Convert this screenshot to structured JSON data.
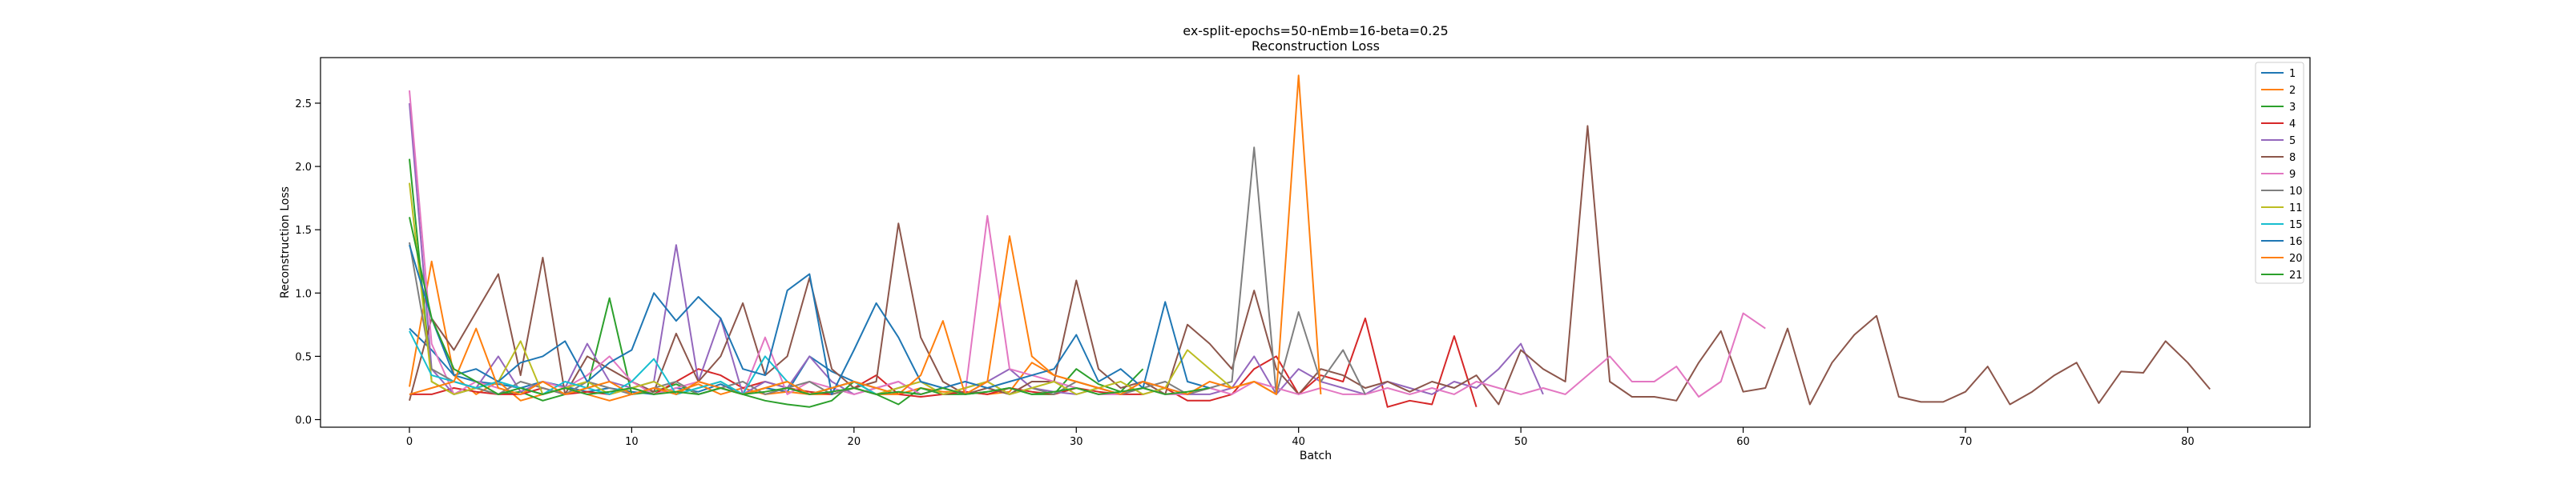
{
  "chart_data": {
    "type": "line",
    "title": "ex-split-epochs=50-nEmb=16-beta=0.25",
    "subtitle": "Reconstruction Loss",
    "xlabel": "Batch",
    "ylabel": "Reconstruction Loss",
    "xlim": [
      -4,
      85.5
    ],
    "ylim": [
      -0.06,
      2.86
    ],
    "xticks": [
      0,
      10,
      20,
      30,
      40,
      50,
      60,
      70,
      80
    ],
    "yticks": [
      0.0,
      0.5,
      1.0,
      1.5,
      2.0,
      2.5
    ],
    "xtick_labels": [
      "0",
      "10",
      "20",
      "30",
      "40",
      "50",
      "60",
      "70",
      "80"
    ],
    "ytick_labels": [
      "0.0",
      "0.5",
      "1.0",
      "1.5",
      "2.0",
      "2.5"
    ],
    "grid": false,
    "legend_position": "top-right",
    "series": [
      {
        "name": "1",
        "color": "#1f77b4",
        "values": [
          0.72,
          0.55,
          0.35,
          0.3,
          0.28,
          0.25,
          0.3,
          0.26,
          0.22,
          0.25,
          0.22,
          0.2,
          0.25,
          0.22,
          0.28,
          0.2,
          0.25,
          0.22,
          0.5,
          0.38,
          0.3,
          0.25
        ]
      },
      {
        "name": "2",
        "color": "#ff7f0e",
        "values": [
          0.26,
          1.25,
          0.35,
          0.2,
          0.3,
          0.15,
          0.2,
          0.25,
          0.2,
          0.15,
          0.2,
          0.25,
          0.22,
          0.28,
          0.2,
          0.25,
          0.2,
          0.22,
          0.2,
          0.2,
          0.25,
          0.2,
          0.2,
          0.25,
          0.22,
          0.22,
          0.2,
          0.22,
          0.45,
          0.35,
          0.3,
          0.25
        ]
      },
      {
        "name": "3",
        "color": "#2ca02c",
        "values": [
          2.06,
          0.3,
          0.2,
          0.25,
          0.2,
          0.22,
          0.15,
          0.2,
          0.25,
          0.96,
          0.2,
          0.22,
          0.28,
          0.2,
          0.25,
          0.2,
          0.15,
          0.12,
          0.1,
          0.15,
          0.3,
          0.2,
          0.12,
          0.25,
          0.2,
          0.2,
          0.22,
          0.25,
          0.2,
          0.2,
          0.4,
          0.28,
          0.22,
          0.4
        ]
      },
      {
        "name": "4",
        "color": "#d62728",
        "values": [
          0.2,
          0.2,
          0.25,
          0.22,
          0.2,
          0.2,
          0.25,
          0.2,
          0.22,
          0.2,
          0.25,
          0.2,
          0.3,
          0.4,
          0.35,
          0.25,
          0.3,
          0.25,
          0.22,
          0.2,
          0.25,
          0.35,
          0.2,
          0.18,
          0.2,
          0.22,
          0.2,
          0.25,
          0.22,
          0.2,
          0.25,
          0.22,
          0.2,
          0.2,
          0.25,
          0.15,
          0.15,
          0.2,
          0.4,
          0.5,
          0.2,
          0.35,
          0.3,
          0.8,
          0.1,
          0.15,
          0.12,
          0.66,
          0.1
        ]
      },
      {
        "name": "5",
        "color": "#9467bd",
        "values": [
          2.5,
          0.4,
          0.2,
          0.25,
          0.5,
          0.22,
          0.3,
          0.25,
          0.6,
          0.3,
          0.25,
          0.3,
          1.38,
          0.3,
          0.8,
          0.2,
          0.3,
          0.25,
          0.5,
          0.3,
          0.2,
          0.25,
          0.3,
          0.2,
          0.25,
          0.2,
          0.3,
          0.4,
          0.25,
          0.22,
          0.2,
          0.25,
          0.2,
          0.3,
          0.25,
          0.2,
          0.2,
          0.25,
          0.5,
          0.2,
          0.4,
          0.3,
          0.25,
          0.2,
          0.3,
          0.25,
          0.2,
          0.3,
          0.25,
          0.4,
          0.6,
          0.2
        ]
      },
      {
        "name": "8",
        "color": "#8c564b",
        "values": [
          0.15,
          0.8,
          0.55,
          0.85,
          1.15,
          0.35,
          1.28,
          0.2,
          0.5,
          0.4,
          0.3,
          0.22,
          0.68,
          0.3,
          0.5,
          0.92,
          0.35,
          0.5,
          1.12,
          0.4,
          0.25,
          0.3,
          1.55,
          0.65,
          0.3,
          0.2,
          0.25,
          0.2,
          0.3,
          0.3,
          1.1,
          0.4,
          0.25,
          0.3,
          0.2,
          0.75,
          0.6,
          0.4,
          1.02,
          0.4,
          0.2,
          0.4,
          0.35,
          0.25,
          0.3,
          0.22,
          0.3,
          0.25,
          0.35,
          0.12,
          0.55,
          0.4,
          0.3,
          2.32,
          0.3,
          0.18,
          0.18,
          0.15,
          0.45,
          0.7,
          0.22,
          0.25,
          0.72,
          0.12,
          0.45,
          0.67,
          0.82,
          0.18,
          0.14,
          0.14,
          0.22,
          0.42,
          0.12,
          0.22,
          0.35,
          0.45,
          0.13,
          0.38,
          0.37,
          0.62,
          0.45,
          0.24
        ]
      },
      {
        "name": "9",
        "color": "#e377c2",
        "values": [
          2.6,
          0.6,
          0.2,
          0.3,
          0.25,
          0.2,
          0.3,
          0.25,
          0.35,
          0.5,
          0.3,
          0.2,
          0.25,
          0.3,
          0.25,
          0.2,
          0.65,
          0.2,
          0.3,
          0.25,
          0.2,
          0.25,
          0.3,
          0.2,
          0.25,
          0.2,
          1.61,
          0.4,
          0.35,
          0.3,
          0.25,
          0.2,
          0.2,
          0.25,
          0.2,
          0.2,
          0.25,
          0.2,
          0.3,
          0.25,
          0.2,
          0.25,
          0.2,
          0.2,
          0.25,
          0.2,
          0.25,
          0.2,
          0.3,
          0.25,
          0.2,
          0.25,
          0.2,
          0.35,
          0.5,
          0.3,
          0.3,
          0.42,
          0.18,
          0.3,
          0.84,
          0.72
        ]
      },
      {
        "name": "10",
        "color": "#7f7f7f",
        "values": [
          1.4,
          0.4,
          0.3,
          0.25,
          0.2,
          0.3,
          0.25,
          0.2,
          0.3,
          0.25,
          0.2,
          0.25,
          0.3,
          0.2,
          0.25,
          0.3,
          0.2,
          0.25,
          0.3,
          0.2,
          0.25,
          0.2,
          0.25,
          0.3,
          0.2,
          0.25,
          0.3,
          0.2,
          0.25,
          0.2,
          0.3,
          0.25,
          0.2,
          0.25,
          0.3,
          0.2,
          0.25,
          0.3,
          2.15,
          0.2,
          0.85,
          0.3,
          0.55,
          0.2
        ]
      },
      {
        "name": "11",
        "color": "#bcbd22",
        "values": [
          1.87,
          0.3,
          0.2,
          0.25,
          0.3,
          0.62,
          0.2,
          0.25,
          0.3,
          0.2,
          0.25,
          0.3,
          0.2,
          0.25,
          0.3,
          0.2,
          0.25,
          0.3,
          0.2,
          0.25,
          0.3,
          0.2,
          0.25,
          0.3,
          0.2,
          0.25,
          0.3,
          0.2,
          0.25,
          0.3,
          0.2,
          0.25,
          0.3,
          0.2,
          0.25,
          0.55,
          0.4,
          0.25,
          0.3,
          0.2
        ]
      },
      {
        "name": "15",
        "color": "#17becf",
        "values": [
          0.7,
          0.35,
          0.3,
          0.25,
          0.3,
          0.25,
          0.2,
          0.3,
          0.25,
          0.2,
          0.3,
          0.48,
          0.2,
          0.25,
          0.3,
          0.2,
          0.5,
          0.3,
          0.2,
          0.25,
          0.3,
          0.2
        ]
      },
      {
        "name": "16",
        "color": "#1f77b4",
        "values": [
          1.38,
          0.8,
          0.35,
          0.4,
          0.3,
          0.45,
          0.5,
          0.62,
          0.3,
          0.45,
          0.55,
          1.0,
          0.78,
          0.97,
          0.8,
          0.4,
          0.35,
          1.02,
          1.15,
          0.2,
          0.55,
          0.92,
          0.65,
          0.3,
          0.25,
          0.3,
          0.25,
          0.3,
          0.35,
          0.4,
          0.67,
          0.3,
          0.4,
          0.25,
          0.93,
          0.3,
          0.25
        ]
      },
      {
        "name": "20",
        "color": "#ff7f0e",
        "values": [
          0.2,
          0.25,
          0.3,
          0.72,
          0.25,
          0.2,
          0.3,
          0.2,
          0.25,
          0.3,
          0.2,
          0.25,
          0.2,
          0.3,
          0.25,
          0.2,
          0.25,
          0.3,
          0.2,
          0.25,
          0.3,
          0.25,
          0.2,
          0.35,
          0.78,
          0.2,
          0.3,
          1.45,
          0.5,
          0.35,
          0.3,
          0.25,
          0.2,
          0.3,
          0.25,
          0.2,
          0.3,
          0.25,
          0.3,
          0.2,
          2.72,
          0.2
        ]
      },
      {
        "name": "21",
        "color": "#2ca02c",
        "values": [
          1.6,
          0.8,
          0.4,
          0.3,
          0.2,
          0.25,
          0.2,
          0.25,
          0.2,
          0.22,
          0.25,
          0.2,
          0.22,
          0.2,
          0.25,
          0.2,
          0.22,
          0.25,
          0.2,
          0.22,
          0.25,
          0.2,
          0.22,
          0.2,
          0.25,
          0.2,
          0.22,
          0.25,
          0.2,
          0.22,
          0.25,
          0.2,
          0.22,
          0.25,
          0.2,
          0.22,
          0.25
        ]
      }
    ]
  }
}
